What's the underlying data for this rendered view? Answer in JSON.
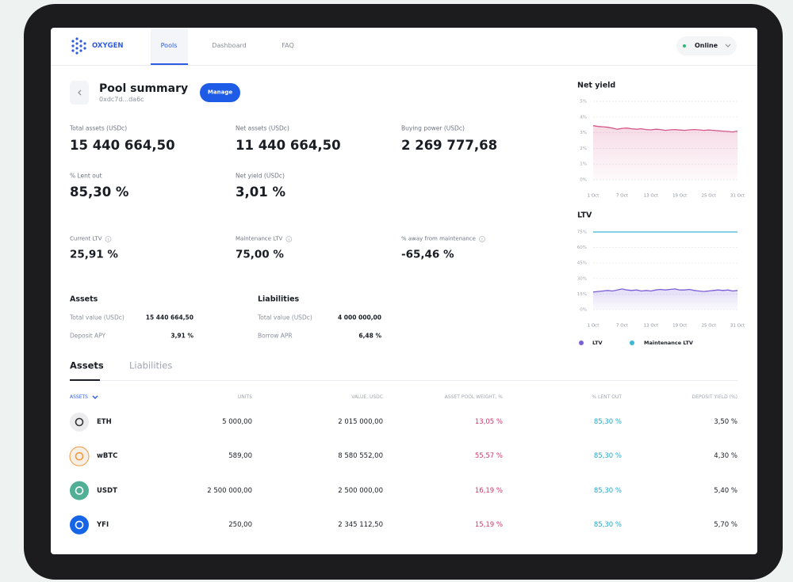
{
  "nav": {
    "brand": "OXYGEN",
    "tabs": [
      "Pools",
      "Dashboard",
      "FAQ"
    ],
    "status": "Online"
  },
  "summary": {
    "title": "Pool summary",
    "address": "0xdc7d...da6c",
    "button": "Manage"
  },
  "metrics": [
    {
      "label": "Total assets (USDc)",
      "value": "15 440 664,50"
    },
    {
      "label": "Net assets (USDc)",
      "value": "11 440 664,50"
    },
    {
      "label": "Buying power (USDc)",
      "value": "2 269 777,68"
    },
    {
      "label": "% Lent out",
      "value": "85,30 %"
    },
    {
      "label": "Net yield (USDc)",
      "value": "3,01 %"
    }
  ],
  "ratios": [
    {
      "label": "Current LTV",
      "value": "25,91 %"
    },
    {
      "label": "Maintenance LTV",
      "value": "75,00 %"
    },
    {
      "label": "% away from maintenance",
      "value": "-65,46 %"
    }
  ],
  "assets_panel": {
    "title": "Assets",
    "rows": [
      [
        "Total value (USDc)",
        "15 440 664,50"
      ],
      [
        "Deposit APY",
        "3,91 %"
      ]
    ]
  },
  "liabilities_panel": {
    "title": "Liabilities",
    "rows": [
      [
        "Total value (USDc)",
        "4 000 000,00"
      ],
      [
        "Borrow APR",
        "6,48 %"
      ]
    ]
  },
  "tabs": [
    "Assets",
    "Liabilities"
  ],
  "table": {
    "columns": [
      "ASSETS",
      "UNITS",
      "VALUE, USDC",
      "ASSET POOL WEIGHT, %",
      "% LENT OUT",
      "DEPOSIT YIELD (%)"
    ],
    "rows": [
      {
        "icon_color": "#ececef",
        "cells": [
          "ETH",
          "5 000,00",
          "2 015 000,00",
          "13,05 %",
          "85,30 %",
          "3,50 %"
        ]
      },
      {
        "icon_color": "#f6efe6",
        "cells": [
          "wBTC",
          "589,00",
          "8 580 552,00",
          "55,57 %",
          "85,30 %",
          "4,30 %"
        ]
      },
      {
        "icon_color": "#50af95",
        "cells": [
          "USDT",
          "2 500 000,00",
          "2 500 000,00",
          "16,19 %",
          "85,30 %",
          "5,40 %"
        ]
      },
      {
        "icon_color": "#1565e6",
        "cells": [
          "YFI",
          "250,00",
          "2 345 112,50",
          "15,19 %",
          "85,30 %",
          "5,70 %"
        ]
      }
    ]
  },
  "net_yield_chart": {
    "type": "area",
    "title": "Net yield",
    "area": true,
    "color": "#d4578a",
    "categories": [
      "1 Oct",
      null,
      null,
      null,
      null,
      null,
      "7 Oct",
      null,
      null,
      null,
      null,
      null,
      "13 Oct",
      null,
      null,
      null,
      null,
      null,
      "19 Oct",
      null,
      null,
      null,
      null,
      null,
      "25 Oct",
      null,
      null,
      null,
      null,
      null,
      "31 Oct"
    ],
    "values": [
      3.45,
      3.4,
      3.38,
      3.35,
      3.3,
      3.22,
      3.28,
      3.3,
      3.25,
      3.22,
      3.25,
      3.2,
      3.18,
      3.22,
      3.2,
      3.15,
      3.18,
      3.2,
      3.17,
      3.15,
      3.18,
      3.2,
      3.18,
      3.15,
      3.17,
      3.15,
      3.12,
      3.1,
      3.08,
      3.05,
      3.1
    ],
    "ylim": [
      0,
      5
    ],
    "yticks": [
      {
        "value": 0,
        "label": "0%"
      },
      {
        "value": 1,
        "label": "1%"
      },
      {
        "value": 2,
        "label": "2%"
      },
      {
        "value": 3,
        "label": "3%"
      },
      {
        "value": 4,
        "label": "4%"
      },
      {
        "value": 5,
        "label": "5%"
      }
    ],
    "grid": true
  },
  "ltv_chart": {
    "type": "line",
    "title": "LTV",
    "categories": [
      "1 Oct",
      null,
      null,
      null,
      null,
      null,
      "7 Oct",
      null,
      null,
      null,
      null,
      null,
      "13 Oct",
      null,
      null,
      null,
      null,
      null,
      "19 Oct",
      null,
      null,
      null,
      null,
      null,
      "25 Oct",
      null,
      null,
      null,
      null,
      null,
      "31 Oct"
    ],
    "series": [
      {
        "name": "LTV",
        "color": "#7b5fd6",
        "area": true,
        "values": [
          17,
          17.5,
          18,
          18.5,
          18,
          19,
          20,
          19,
          18.5,
          19,
          18,
          18.5,
          18,
          19,
          19.5,
          19,
          19.5,
          20,
          19,
          19,
          19.5,
          18.5,
          18,
          17.5,
          18,
          18.5,
          19,
          18.5,
          19,
          18,
          18.5
        ]
      },
      {
        "name": "Maintenance LTV",
        "color": "#3ab8d6",
        "area": false,
        "values": [
          75,
          75,
          75,
          75,
          75,
          75,
          75,
          75,
          75,
          75,
          75,
          75,
          75,
          75,
          75,
          75,
          75,
          75,
          75,
          75,
          75,
          75,
          75,
          75,
          75,
          75,
          75,
          75,
          75,
          75,
          75
        ]
      }
    ],
    "ylim": [
      0,
      75
    ],
    "yticks": [
      {
        "value": 0,
        "label": "0%"
      },
      {
        "value": 15,
        "label": "15%"
      },
      {
        "value": 30,
        "label": "30%"
      },
      {
        "value": 45,
        "label": "45%"
      },
      {
        "value": 60,
        "label": "60%"
      },
      {
        "value": 75,
        "label": "75%"
      }
    ],
    "grid": true
  }
}
